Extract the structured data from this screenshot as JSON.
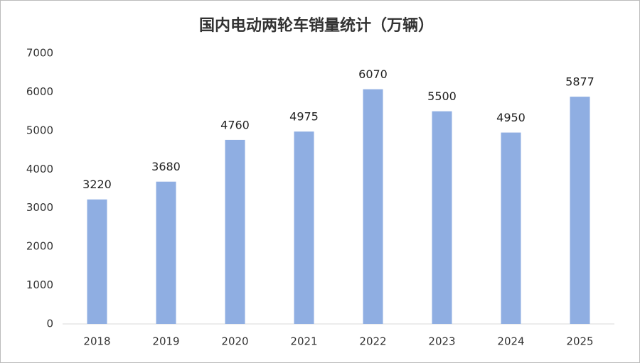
{
  "chart_data": {
    "type": "bar",
    "title": "国内电动两轮车销量统计（万辆）",
    "categories": [
      "2018",
      "2019",
      "2020",
      "2021",
      "2022",
      "2023",
      "2024",
      "2025"
    ],
    "values": [
      3220,
      3680,
      4760,
      4975,
      6070,
      5500,
      4950,
      5877
    ],
    "color": "#8faee2",
    "ylim": [
      0,
      7000
    ],
    "yticks": [
      0,
      1000,
      2000,
      3000,
      4000,
      5000,
      6000,
      7000
    ],
    "grid": false,
    "data_labels": true
  }
}
